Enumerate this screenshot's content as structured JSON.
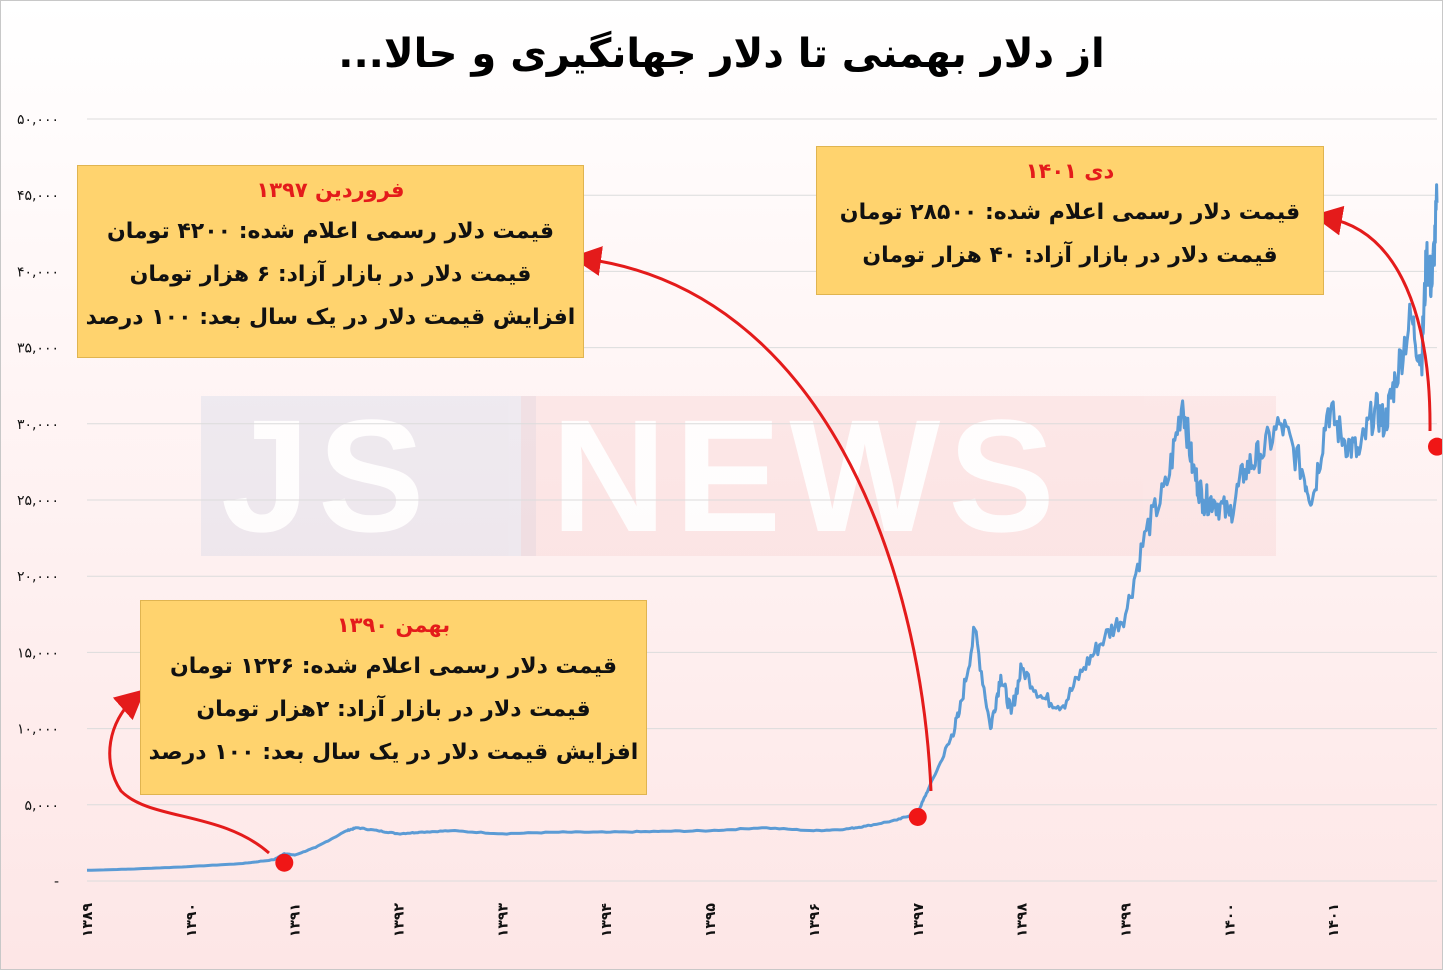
{
  "title": "از دلار بهمنی تا دلار جهانگیری و حالا...",
  "watermark": {
    "left": "JS",
    "right": "NEWS"
  },
  "callouts": [
    {
      "id": "1397",
      "title": "فروردین ۱۳۹۷",
      "lines": [
        "قیمت دلار رسمی اعلام شده: ۴۲۰۰ تومان",
        "قیمت دلار در بازار آزاد: ۶ هزار تومان",
        "افزایش قیمت دلار در یک سال بعد: ۱۰۰ درصد"
      ]
    },
    {
      "id": "1390",
      "title": "بهمن ۱۳۹۰",
      "lines": [
        "قیمت دلار رسمی اعلام شده: ۱۲۲۶ تومان",
        "قیمت دلار در بازار آزاد: ۲هزار تومان",
        "افزایش قیمت دلار در یک سال بعد: ۱۰۰ درصد"
      ]
    },
    {
      "id": "1401",
      "title": "دی ۱۴۰۱",
      "lines": [
        "قیمت دلار رسمی اعلام شده: ۲۸۵۰۰ تومان",
        "قیمت دلار در بازار آزاد: ۴۰ هزار تومان"
      ]
    }
  ],
  "colors": {
    "line": "#5b9bd5",
    "marker": "#f01616",
    "arrow": "#e41b1b",
    "callout": "#ffd36e",
    "grid": "#dcdcdc"
  },
  "chart_data": {
    "type": "line",
    "title": "از دلار بهمنی تا دلار جهانگیری و حالا...",
    "ylim": [
      0,
      50000
    ],
    "y_ticks": [
      "-",
      "۵,۰۰۰",
      "۱۰,۰۰۰",
      "۱۵,۰۰۰",
      "۲۰,۰۰۰",
      "۲۵,۰۰۰",
      "۳۰,۰۰۰",
      "۳۵,۰۰۰",
      "۴۰,۰۰۰",
      "۴۵,۰۰۰",
      "۵۰,۰۰۰"
    ],
    "y_tick_values": [
      0,
      5000,
      10000,
      15000,
      20000,
      25000,
      30000,
      35000,
      40000,
      45000,
      50000
    ],
    "x_ticks": [
      "۱۳۸۹",
      "۱۳۹۰",
      "۱۳۹۱",
      "۱۳۹۲",
      "۱۳۹۳",
      "۱۳۹۴",
      "۱۳۹۵",
      "۱۳۹۶",
      "۱۳۹۷",
      "۱۳۹۸",
      "۱۳۹۹",
      "۱۴۰۰",
      "۱۴۰۱"
    ],
    "x_tick_values": [
      1389,
      1390,
      1391,
      1392,
      1393,
      1394,
      1395,
      1396,
      1397,
      1398,
      1399,
      1400,
      1401
    ],
    "grid": true,
    "x": [
      1389.0,
      1389.5,
      1390.0,
      1390.5,
      1390.8,
      1390.9,
      1391.0,
      1391.2,
      1391.5,
      1391.6,
      1391.8,
      1392.0,
      1392.2,
      1392.5,
      1393.0,
      1393.5,
      1394.0,
      1394.5,
      1395.0,
      1395.5,
      1396.0,
      1396.3,
      1396.5,
      1396.8,
      1397.0,
      1397.1,
      1397.3,
      1397.4,
      1397.55,
      1397.7,
      1397.8,
      1397.9,
      1398.0,
      1398.2,
      1398.4,
      1398.6,
      1398.8,
      1399.0,
      1399.2,
      1399.4,
      1399.55,
      1399.65,
      1399.75,
      1399.85,
      1400.0,
      1400.15,
      1400.3,
      1400.5,
      1400.7,
      1400.8,
      1400.95,
      1401.1,
      1401.25,
      1401.4,
      1401.5,
      1401.6,
      1401.75,
      1401.85,
      1401.9,
      1401.95,
      1402.0
    ],
    "values": [
      700,
      800,
      950,
      1150,
      1400,
      1800,
      1700,
      2200,
      3300,
      3500,
      3300,
      3100,
      3200,
      3300,
      3100,
      3200,
      3200,
      3250,
      3300,
      3500,
      3300,
      3400,
      3600,
      4000,
      4500,
      6000,
      9000,
      11000,
      16500,
      10000,
      13500,
      11000,
      14000,
      12000,
      11500,
      14000,
      16000,
      17500,
      23000,
      26000,
      31500,
      27000,
      25000,
      25000,
      24000,
      27000,
      28000,
      30000,
      27000,
      25000,
      31000,
      29000,
      28000,
      31000,
      30000,
      33000,
      37000,
      34000,
      41000,
      39000,
      44500
    ],
    "markers": [
      {
        "x": 1390.9,
        "y": 1200
      },
      {
        "x": 1397.0,
        "y": 4200
      },
      {
        "x": 1402.0,
        "y": 28500
      }
    ]
  }
}
